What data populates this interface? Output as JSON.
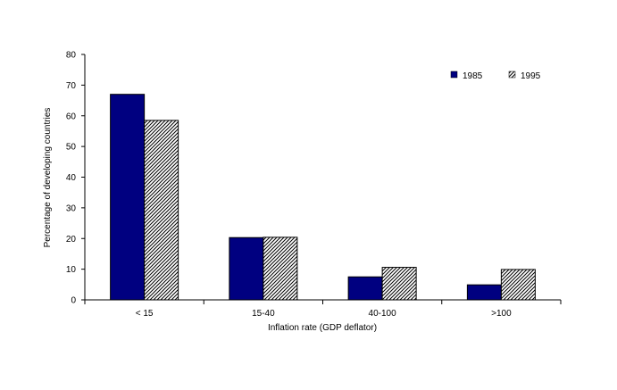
{
  "chart_data": {
    "type": "bar",
    "title": "",
    "xlabel": "Inflation rate (GDP deflator)",
    "ylabel": "Percentage of developing countries",
    "categories": [
      "< 15",
      "15-40",
      "40-100",
      ">100"
    ],
    "series": [
      {
        "name": "1985",
        "values": [
          67,
          20.3,
          7.5,
          4.9
        ],
        "color": "#000080",
        "fill": "solid"
      },
      {
        "name": "1995",
        "values": [
          58.5,
          20.4,
          10.6,
          9.9
        ],
        "color": "#000000",
        "fill": "diagonal-hatch"
      }
    ],
    "ylim": [
      0,
      80
    ],
    "yticks": [
      "0",
      "10",
      "20",
      "30",
      "40",
      "50",
      "60",
      "70",
      "80"
    ],
    "grid": false,
    "legend_position": "top-right"
  }
}
